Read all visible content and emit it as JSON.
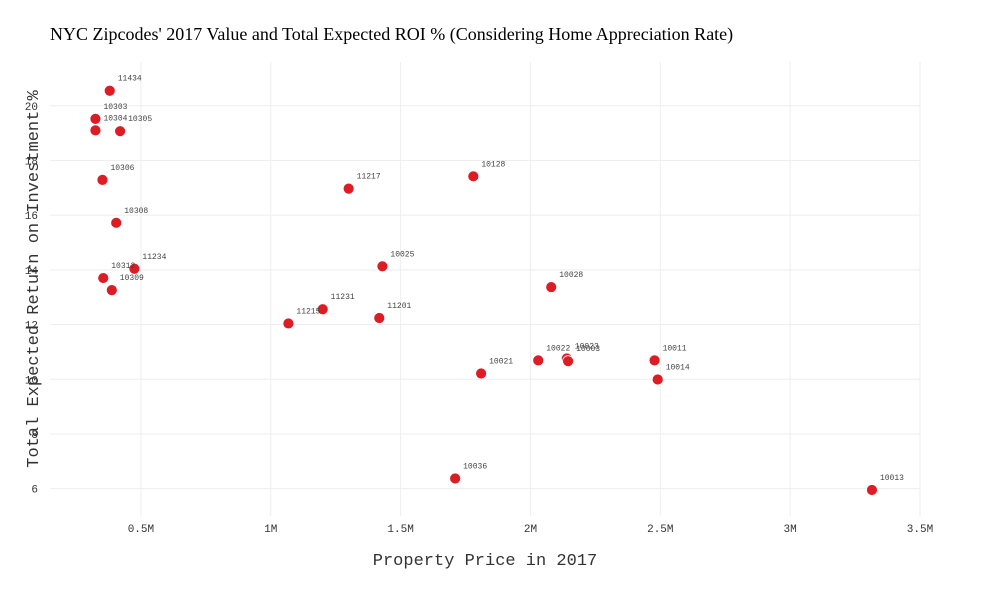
{
  "chart_data": {
    "type": "scatter",
    "title": "NYC Zipcodes' 2017 Value and Total Expected ROI % (Considering Home Appreciation Rate)",
    "xlabel": "Property Price in 2017",
    "ylabel": "Total Expected Return on Investment %",
    "xlim": [
      150000,
      3500000
    ],
    "ylim": [
      5,
      21.6
    ],
    "x_ticks": [
      500000,
      1000000,
      1500000,
      2000000,
      2500000,
      3000000,
      3500000
    ],
    "x_tick_labels": [
      "0.5M",
      "1M",
      "1.5M",
      "2M",
      "2.5M",
      "3M",
      "3.5M"
    ],
    "y_ticks": [
      6,
      8,
      10,
      12,
      14,
      16,
      18,
      20
    ],
    "y_tick_labels": [
      "6",
      "8",
      "10",
      "12",
      "14",
      "16",
      "18",
      "20"
    ],
    "grid": true,
    "marker_color": "#dd1c24",
    "points": [
      {
        "label": "11434",
        "x": 380000,
        "y": 20.55
      },
      {
        "label": "10303",
        "x": 325000,
        "y": 19.52
      },
      {
        "label": "10304",
        "x": 325000,
        "y": 19.1
      },
      {
        "label": "10305",
        "x": 420000,
        "y": 19.07
      },
      {
        "label": "10306",
        "x": 352000,
        "y": 17.29
      },
      {
        "label": "10308",
        "x": 405000,
        "y": 15.72
      },
      {
        "label": "11234",
        "x": 475000,
        "y": 14.04
      },
      {
        "label": "10312",
        "x": 355000,
        "y": 13.7
      },
      {
        "label": "10309",
        "x": 388000,
        "y": 13.26
      },
      {
        "label": "11217",
        "x": 1300000,
        "y": 16.97
      },
      {
        "label": "10128",
        "x": 1780000,
        "y": 17.42
      },
      {
        "label": "10025",
        "x": 1430000,
        "y": 14.13
      },
      {
        "label": "11231",
        "x": 1200000,
        "y": 12.56
      },
      {
        "label": "11215",
        "x": 1068000,
        "y": 12.04
      },
      {
        "label": "11201",
        "x": 1418000,
        "y": 12.24
      },
      {
        "label": "10028",
        "x": 2080000,
        "y": 13.37
      },
      {
        "label": "10021",
        "x": 1810000,
        "y": 10.21
      },
      {
        "label": "10022",
        "x": 2030000,
        "y": 10.69
      },
      {
        "label": "10023",
        "x": 2140000,
        "y": 10.76
      },
      {
        "label": "10003",
        "x": 2145000,
        "y": 10.66
      },
      {
        "label": "10011",
        "x": 2478000,
        "y": 10.69
      },
      {
        "label": "10014",
        "x": 2490000,
        "y": 9.99
      },
      {
        "label": "10036",
        "x": 1710000,
        "y": 6.37
      },
      {
        "label": "10013",
        "x": 3315000,
        "y": 5.95
      }
    ]
  }
}
